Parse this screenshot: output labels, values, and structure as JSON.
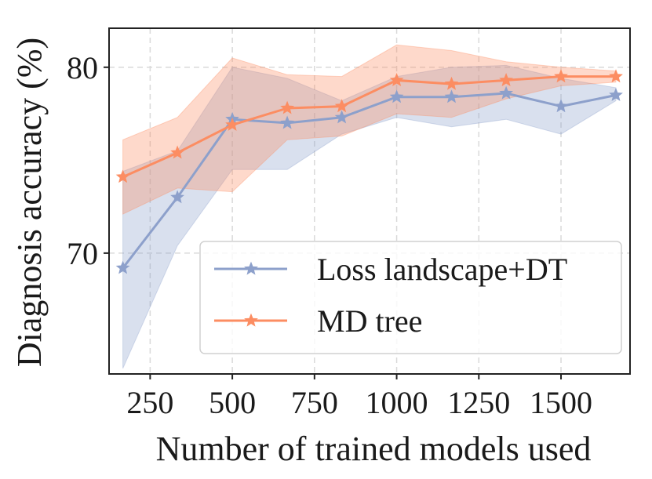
{
  "chart_data": {
    "type": "line",
    "title": "",
    "xlabel": "Number of trained models used",
    "ylabel": "Diagnosis accuracy (%)",
    "xlim": [
      125,
      1710
    ],
    "ylim": [
      63.5,
      82.1
    ],
    "xticks": [
      250,
      500,
      750,
      1000,
      1250,
      1500
    ],
    "xtick_labels": [
      "250",
      "500",
      "750",
      "1000",
      "1250",
      "1500"
    ],
    "yticks": [
      70,
      80
    ],
    "ytick_labels": [
      "70",
      "80"
    ],
    "grid": true,
    "legend_position": "lower-right",
    "series": [
      {
        "name": "Loss landscape+DT",
        "color": "#8da0cb",
        "marker": "star",
        "x": [
          167,
          333,
          500,
          667,
          833,
          1000,
          1167,
          1333,
          1500,
          1667
        ],
        "y": [
          69.2,
          73.0,
          77.2,
          77.0,
          77.3,
          78.4,
          78.4,
          78.6,
          77.9,
          78.5
        ],
        "lower": [
          63.8,
          70.4,
          74.5,
          74.5,
          76.4,
          77.3,
          76.8,
          77.2,
          76.4,
          78.2
        ],
        "upper": [
          74.4,
          75.5,
          80.0,
          79.4,
          78.2,
          79.5,
          80.0,
          80.1,
          79.4,
          78.9
        ]
      },
      {
        "name": "MD tree",
        "color": "#fc8d62",
        "marker": "star",
        "x": [
          167,
          333,
          500,
          667,
          833,
          1000,
          1167,
          1333,
          1500,
          1667
        ],
        "y": [
          74.1,
          75.4,
          76.9,
          77.8,
          77.9,
          79.3,
          79.1,
          79.3,
          79.5,
          79.5
        ],
        "lower": [
          72.1,
          73.5,
          73.3,
          76.1,
          76.3,
          77.5,
          77.3,
          78.3,
          79.0,
          79.2
        ],
        "upper": [
          76.1,
          77.3,
          80.5,
          79.6,
          79.5,
          81.2,
          80.9,
          80.3,
          80.0,
          79.8
        ]
      }
    ]
  }
}
